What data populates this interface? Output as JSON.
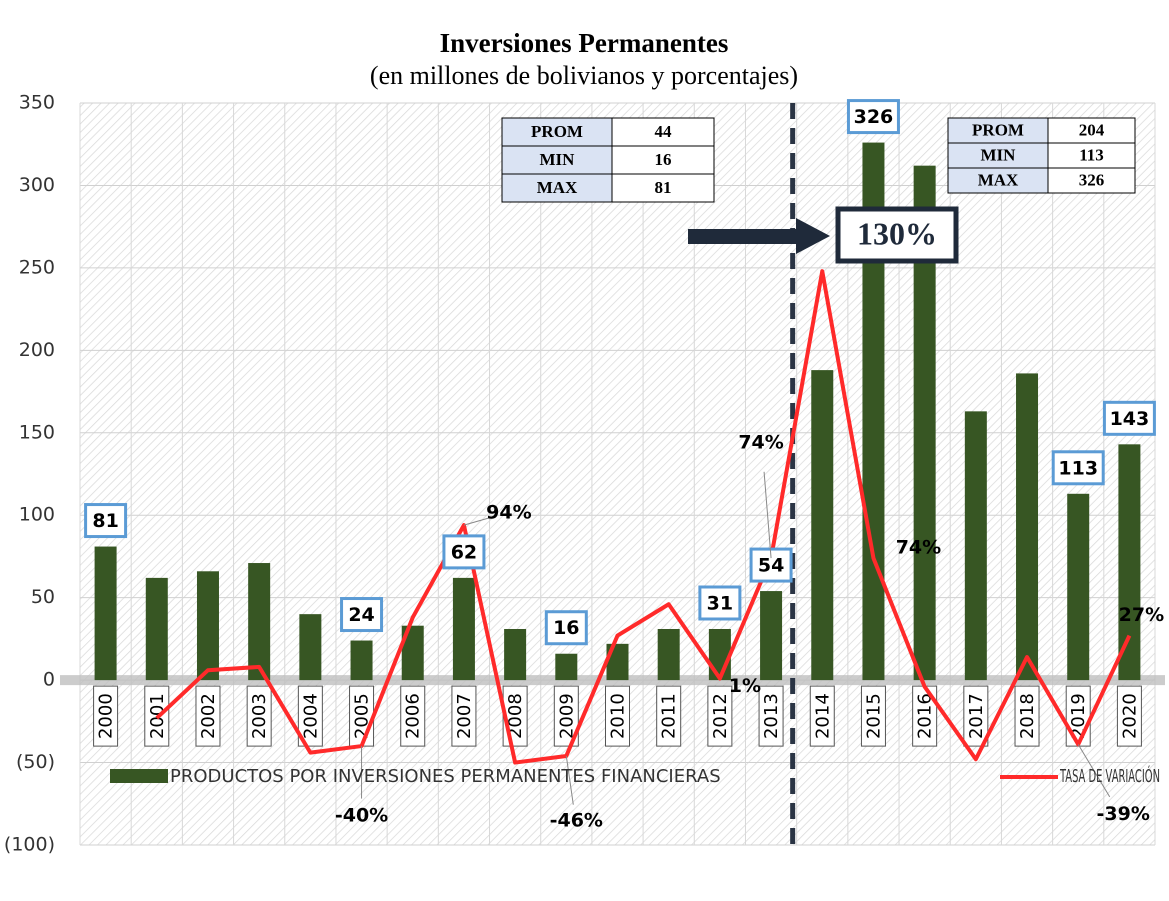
{
  "chart_data": {
    "type": "bar_line",
    "title": "Inversiones Permanentes",
    "subtitle": "(en millones de bolivianos y porcentajes)",
    "categories": [
      "2000",
      "2001",
      "2002",
      "2003",
      "2004",
      "2005",
      "2006",
      "2007",
      "2008",
      "2009",
      "2010",
      "2011",
      "2012",
      "2013",
      "2014",
      "2015",
      "2016",
      "2017",
      "2018",
      "2019",
      "2020"
    ],
    "series": [
      {
        "name": "PRODUCTOS POR INVERSIONES PERMANENTES FINANCIERAS",
        "type": "bar",
        "color": "#375623",
        "values": [
          81,
          62,
          66,
          71,
          40,
          24,
          33,
          62,
          31,
          16,
          22,
          31,
          31,
          54,
          188,
          326,
          312,
          163,
          186,
          113,
          143
        ],
        "value_labels": [
          "81",
          null,
          null,
          null,
          null,
          "24",
          null,
          "62",
          null,
          "16",
          null,
          null,
          "31",
          "54",
          null,
          "326",
          null,
          null,
          null,
          "113",
          "143"
        ]
      },
      {
        "name": "TASA DE VARIACIÓN",
        "type": "line",
        "color": "#ff2a2a",
        "values": [
          null,
          -23,
          6,
          8,
          -44,
          -40,
          38,
          94,
          -50,
          -46,
          27,
          46,
          1,
          74,
          248,
          74,
          -4,
          -48,
          14,
          -39,
          27
        ],
        "value_labels": [
          null,
          null,
          null,
          null,
          null,
          "-40%",
          null,
          "94%",
          null,
          "-46%",
          null,
          null,
          "1%",
          "74%",
          null,
          "74%",
          null,
          null,
          null,
          "-39%",
          "27%"
        ]
      }
    ],
    "ylim": [
      -100,
      350
    ],
    "yticks": [
      {
        "value": -100,
        "label": "(100)"
      },
      {
        "value": -50,
        "label": "(50)"
      },
      0,
      50,
      100,
      150,
      200,
      250,
      300,
      350
    ],
    "grid": true,
    "legend": "bottom",
    "annotation": "130%",
    "stat_tables": [
      {
        "rows": [
          [
            "PROM",
            44
          ],
          [
            "MIN",
            16
          ],
          [
            "MAX",
            81
          ]
        ]
      },
      {
        "rows": [
          [
            "PROM",
            204
          ],
          [
            "MIN",
            113
          ],
          [
            "MAX",
            326
          ]
        ]
      }
    ]
  }
}
